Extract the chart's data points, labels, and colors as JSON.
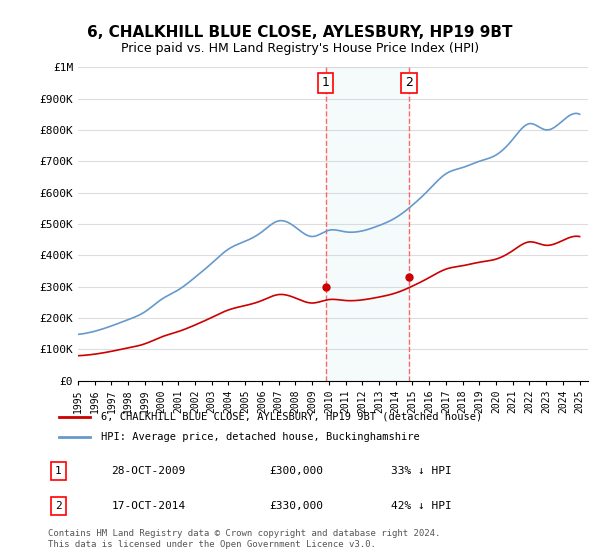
{
  "title": "6, CHALKHILL BLUE CLOSE, AYLESBURY, HP19 9BT",
  "subtitle": "Price paid vs. HM Land Registry's House Price Index (HPI)",
  "ylabel_values": [
    "£0",
    "£100K",
    "£200K",
    "£300K",
    "£400K",
    "£500K",
    "£600K",
    "£700K",
    "£800K",
    "£900K",
    "£1M"
  ],
  "ylim": [
    0,
    1000000
  ],
  "yticks": [
    0,
    100000,
    200000,
    300000,
    400000,
    500000,
    600000,
    700000,
    800000,
    900000,
    1000000
  ],
  "xlim_start": 1995.0,
  "xlim_end": 2025.5,
  "sale1_x": 2009.82,
  "sale1_y": 300000,
  "sale2_x": 2014.79,
  "sale2_y": 330000,
  "sale_color": "#cc0000",
  "hpi_color": "#6699cc",
  "annotation_bg": "#ddeeff",
  "dashed_color": "#ff6666",
  "legend_label_red": "6, CHALKHILL BLUE CLOSE, AYLESBURY, HP19 9BT (detached house)",
  "legend_label_blue": "HPI: Average price, detached house, Buckinghamshire",
  "footnote1": "Contains HM Land Registry data © Crown copyright and database right 2024.",
  "footnote2": "This data is licensed under the Open Government Licence v3.0.",
  "table_rows": [
    {
      "num": "1",
      "date": "28-OCT-2009",
      "price": "£300,000",
      "hpi": "33% ↓ HPI"
    },
    {
      "num": "2",
      "date": "17-OCT-2014",
      "price": "£330,000",
      "hpi": "42% ↓ HPI"
    }
  ],
  "background_color": "#ffffff",
  "grid_color": "#dddddd"
}
